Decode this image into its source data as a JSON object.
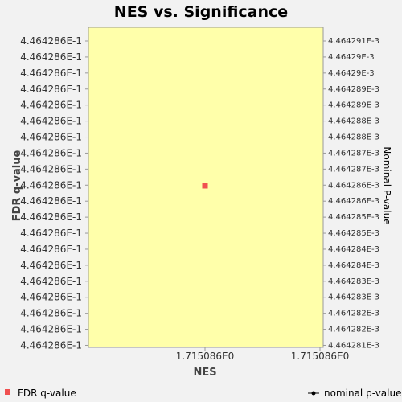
{
  "chart_data": {
    "type": "scatter",
    "title": "NES vs. Significance",
    "xlabel": "NES",
    "ylabel": "FDR q-value",
    "y2label": "Nominal P-value",
    "x_tick_labels": [
      "1.715086E0",
      "1.715086E0"
    ],
    "y_tick_labels": [
      "4.464286E-1",
      "4.464286E-1",
      "4.464286E-1",
      "4.464286E-1",
      "4.464286E-1",
      "4.464286E-1",
      "4.464286E-1",
      "4.464286E-1",
      "4.464286E-1",
      "4.464286E-1",
      "4.464286E-1",
      "4.464286E-1",
      "4.464286E-1",
      "4.464286E-1",
      "4.464286E-1",
      "4.464286E-1",
      "4.464286E-1",
      "4.464286E-1",
      "4.464286E-1",
      "4.464286E-1"
    ],
    "y2_tick_labels": [
      "4.464291E-3",
      "4.46429E-3",
      "4.46429E-3",
      "4.464289E-3",
      "4.464289E-3",
      "4.464288E-3",
      "4.464288E-3",
      "4.464287E-3",
      "4.464287E-3",
      "4.464286E-3",
      "4.464286E-3",
      "4.464285E-3",
      "4.464285E-3",
      "4.464284E-3",
      "4.464284E-3",
      "4.464283E-3",
      "4.464283E-3",
      "4.464282E-3",
      "4.464282E-3",
      "4.464281E-3"
    ],
    "series": [
      {
        "name": "FDR q-value",
        "axis": "left",
        "marker": "square",
        "color": "#f05050",
        "points": [
          {
            "x": 1.715086,
            "y": 0.4464286
          }
        ]
      },
      {
        "name": "nominal p-value",
        "axis": "right",
        "marker": "line-dot",
        "color": "#000000",
        "points": [
          {
            "x": 1.715086,
            "y": 0.004464286
          }
        ]
      }
    ],
    "plot_background": "#ffffaa",
    "grid": false,
    "legend_placement": "bottom"
  }
}
